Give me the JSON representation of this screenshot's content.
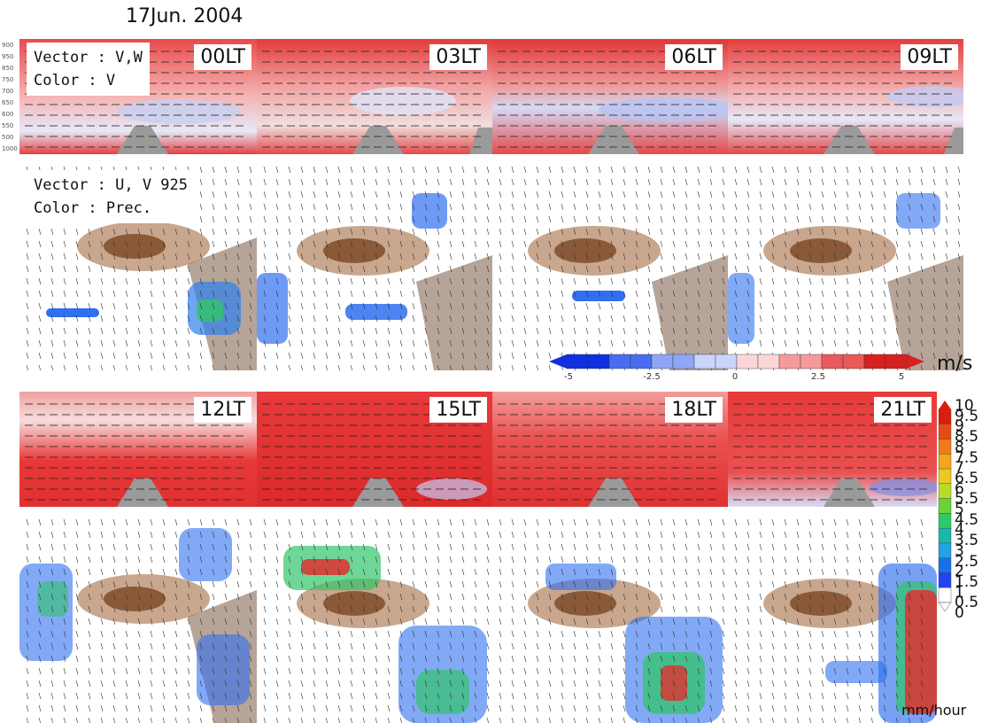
{
  "title": "17Jun. 2004",
  "legend_vertical": {
    "line1": "Vector : V,W",
    "line2": "Color : V"
  },
  "legend_horizontal": {
    "line1": "Vector : U, V 925",
    "line2": "Color : Prec."
  },
  "panels": [
    {
      "time": "00LT"
    },
    {
      "time": "03LT"
    },
    {
      "time": "06LT"
    },
    {
      "time": "09LT"
    },
    {
      "time": "12LT"
    },
    {
      "time": "15LT"
    },
    {
      "time": "18LT"
    },
    {
      "time": "21LT"
    }
  ],
  "pressure_levels": [
    "900",
    "950",
    "850",
    "750",
    "700",
    "650",
    "600",
    "550",
    "500",
    "1000"
  ],
  "v_colorbar": {
    "ticks": [
      "-5",
      "-2.5",
      "0",
      "2.5",
      "5"
    ],
    "unit": "m/s",
    "colors": [
      "#1030e0",
      "#4a6cf0",
      "#8ea6f5",
      "#c9d5fb",
      "#fbd6d6",
      "#f59a9a",
      "#ea5a5a",
      "#d72020"
    ]
  },
  "prec_colorbar": {
    "ticks": [
      "10",
      "9.5",
      "9",
      "8.5",
      "8",
      "7.5",
      "7",
      "6.5",
      "6",
      "5.5",
      "5",
      "4.5",
      "4",
      "3.5",
      "3",
      "2.5",
      "2",
      "1.5",
      "1",
      "0.5",
      "0"
    ],
    "unit": "mm/hour",
    "colors": [
      "#d91e10",
      "#e84a14",
      "#f07a18",
      "#f4a41d",
      "#eac923",
      "#b8dc26",
      "#6ad33a",
      "#2fc86a",
      "#19b8ae",
      "#23a3df",
      "#1a70e8",
      "#2244f0",
      "#ffffff"
    ]
  }
}
